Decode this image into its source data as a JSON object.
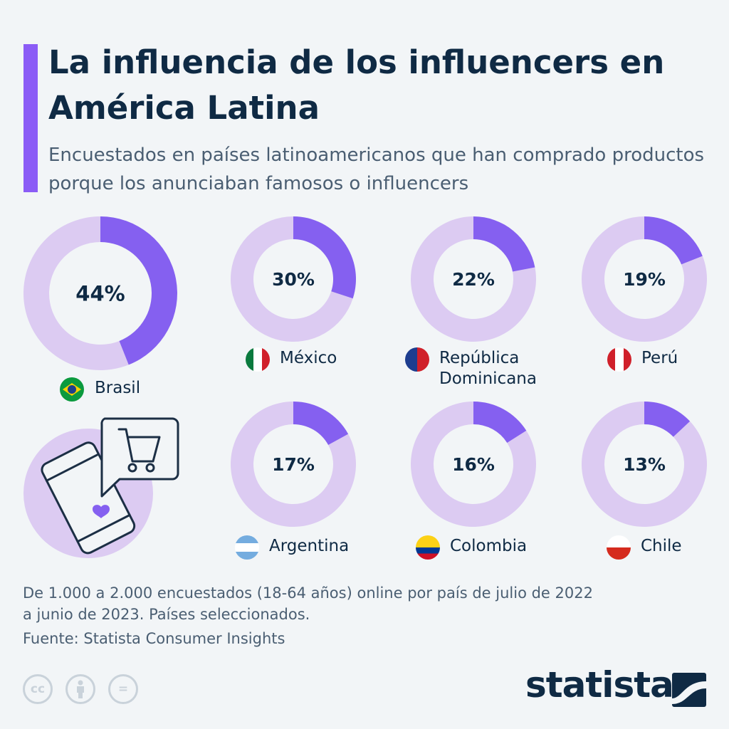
{
  "header": {
    "title": "La influencia de los influencers en América Latina",
    "subtitle": "Encuestados en países latinoamericanos que han comprado productos porque los anunciaban famosos o influencers"
  },
  "chart_data": {
    "type": "donut",
    "unit": "%",
    "categories": [
      "Brasil",
      "México",
      "República Dominicana",
      "Perú",
      "Argentina",
      "Colombia",
      "Chile"
    ],
    "values": [
      44,
      30,
      22,
      19,
      17,
      16,
      13
    ],
    "value_labels": [
      "44%",
      "30%",
      "22%",
      "19%",
      "17%",
      "16%",
      "13%"
    ],
    "label_lines": [
      [
        "Brasil"
      ],
      [
        "México"
      ],
      [
        "República",
        "Dominicana"
      ],
      [
        "Perú"
      ],
      [
        "Argentina"
      ],
      [
        "Colombia"
      ],
      [
        "Chile"
      ]
    ],
    "colors": {
      "value": "#8560f0",
      "remainder": "#dccbf2",
      "illustration_circle": "#dccbf2"
    }
  },
  "footer": {
    "note_line1": "De 1.000 a 2.000 encuestados (18-64 años) online por país de julio de 2022",
    "note_line2": "a junio de 2023. Países seleccionados.",
    "source": "Fuente: Statista Consumer Insights",
    "license_icons": [
      "cc-icon",
      "attribution-icon",
      "no-derivatives-icon"
    ],
    "cc_label": "cc",
    "nd_label": "=",
    "logo": "statista"
  }
}
